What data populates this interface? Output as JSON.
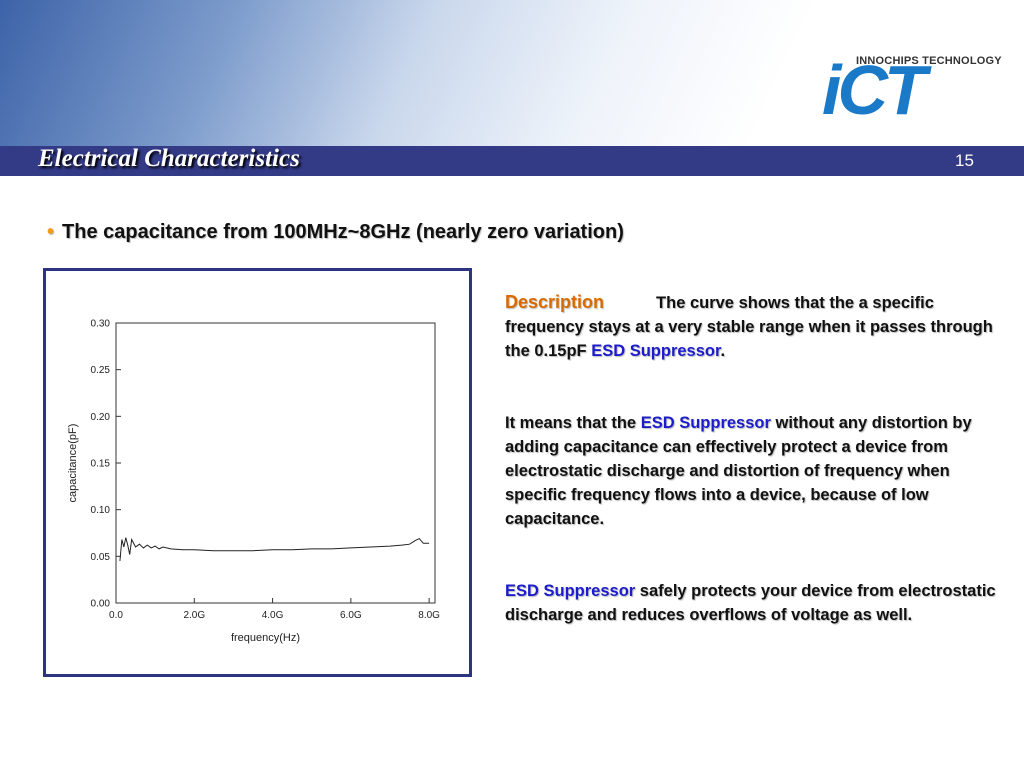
{
  "header": {
    "title": "Electrical Characteristics",
    "page_number": "15"
  },
  "logo": {
    "company": "INNOCHIPS TECHNOLOGY",
    "mark": "iCT"
  },
  "bullet": "The capacitance from 100MHz~8GHz (nearly zero variation)",
  "description": {
    "heading": "Description",
    "paragraphs": [
      [
        "The curve shows that the a specific frequency stays at a very stable range when it passes through the 0.15pF ",
        "ESD Suppressor",
        "."
      ],
      [
        "It means that the ",
        "ESD Suppressor",
        " without any distortion by adding capacitance can effectively protect a device from electrostatic discharge and distortion of frequency when specific frequency flows into a device, because of low capacitance."
      ],
      [
        "ESD Suppressor",
        " safely protects your device from electrostatic discharge and reduces overflows of voltage as well."
      ]
    ]
  },
  "chart_data": {
    "type": "line",
    "x_label": "frequency(Hz)",
    "y_label": "capacitance(pF)",
    "color": "#222222",
    "xlim": [
      0,
      8.15
    ],
    "ylim": [
      0,
      0.3
    ],
    "xticks": [
      {
        "value": 0,
        "label": "0.0"
      },
      {
        "value": 2,
        "label": "2.0G"
      },
      {
        "value": 4,
        "label": "4.0G"
      },
      {
        "value": 6,
        "label": "6.0G"
      },
      {
        "value": 8,
        "label": "8.0G"
      }
    ],
    "yticks": [
      {
        "value": 0,
        "label": "0.00"
      },
      {
        "value": 0.05,
        "label": "0.05"
      },
      {
        "value": 0.1,
        "label": "0.10"
      },
      {
        "value": 0.15,
        "label": "0.15"
      },
      {
        "value": 0.2,
        "label": "0.20"
      },
      {
        "value": 0.25,
        "label": "0.25"
      },
      {
        "value": 0.3,
        "label": "0.30"
      }
    ],
    "x": [
      0.1,
      0.15,
      0.2,
      0.25,
      0.3,
      0.35,
      0.4,
      0.5,
      0.6,
      0.7,
      0.8,
      0.9,
      1.0,
      1.1,
      1.2,
      1.4,
      1.7,
      2.0,
      2.5,
      3.0,
      3.5,
      4.0,
      4.5,
      5.0,
      5.5,
      6.0,
      6.5,
      7.0,
      7.3,
      7.5,
      7.65,
      7.75,
      7.85,
      8.0
    ],
    "values": [
      0.045,
      0.068,
      0.06,
      0.07,
      0.062,
      0.052,
      0.068,
      0.06,
      0.063,
      0.059,
      0.062,
      0.059,
      0.061,
      0.058,
      0.06,
      0.058,
      0.057,
      0.057,
      0.056,
      0.056,
      0.056,
      0.057,
      0.057,
      0.058,
      0.058,
      0.059,
      0.06,
      0.061,
      0.062,
      0.063,
      0.067,
      0.069,
      0.064,
      0.064
    ]
  }
}
